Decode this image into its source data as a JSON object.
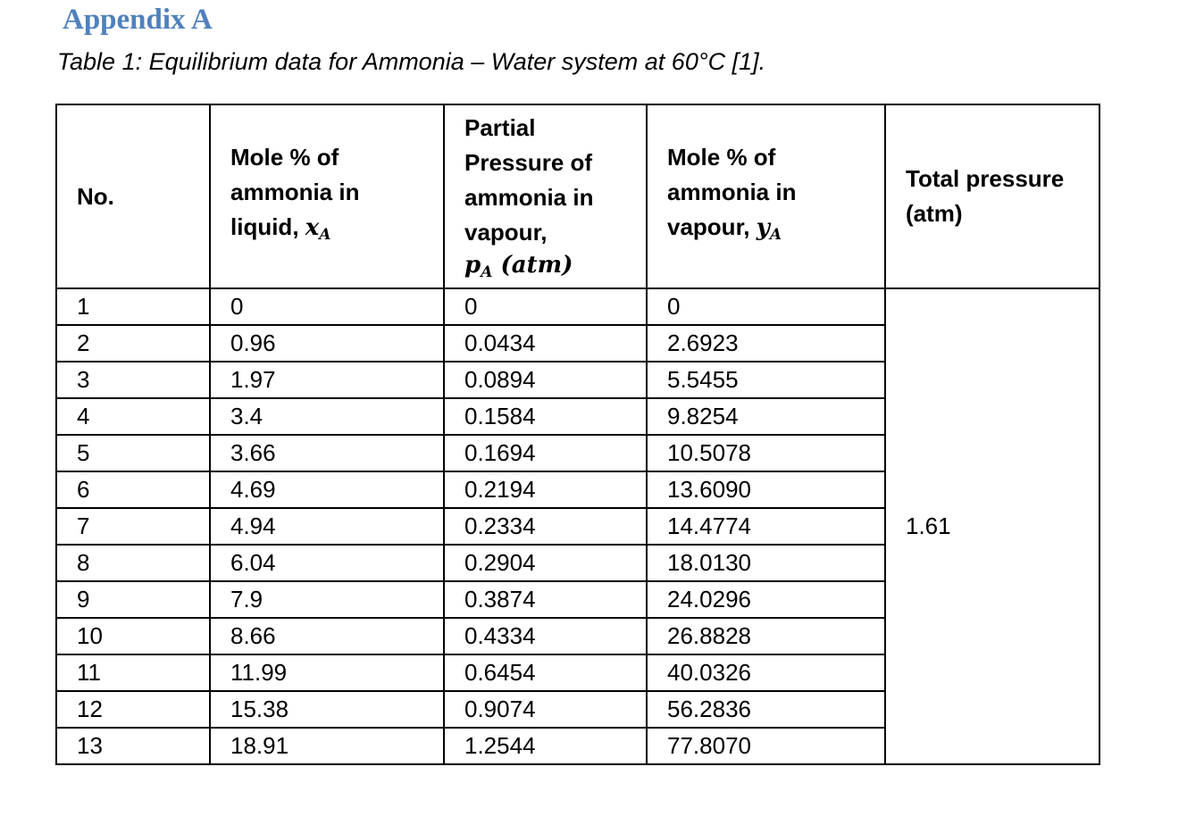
{
  "document": {
    "heading": "Appendix A",
    "caption": "Table 1: Equilibrium data for Ammonia – Water system at 60°C [1]."
  },
  "table": {
    "headers": {
      "no": "No.",
      "liquid_label": "Mole % of ammonia in liquid, ",
      "liquid_symbol": "x",
      "liquid_sub": "A",
      "partial_label": "Partial Pressure of ammonia in vapour,",
      "partial_symbol": "p",
      "partial_sub": "A",
      "partial_unit": " (atm)",
      "vapour_label": "Mole % of ammonia in vapour, ",
      "vapour_symbol": "y",
      "vapour_sub": "A",
      "total": "Total pressure (atm)"
    },
    "total_pressure": "1.61",
    "rows": [
      {
        "no": "1",
        "x": "0",
        "p": "0",
        "y": "0"
      },
      {
        "no": "2",
        "x": "0.96",
        "p": "0.0434",
        "y": "2.6923"
      },
      {
        "no": "3",
        "x": "1.97",
        "p": "0.0894",
        "y": "5.5455"
      },
      {
        "no": "4",
        "x": "3.4",
        "p": "0.1584",
        "y": "9.8254"
      },
      {
        "no": "5",
        "x": "3.66",
        "p": "0.1694",
        "y": "10.5078"
      },
      {
        "no": "6",
        "x": "4.69",
        "p": "0.2194",
        "y": "13.6090"
      },
      {
        "no": "7",
        "x": "4.94",
        "p": "0.2334",
        "y": "14.4774"
      },
      {
        "no": "8",
        "x": "6.04",
        "p": "0.2904",
        "y": "18.0130"
      },
      {
        "no": "9",
        "x": "7.9",
        "p": "0.3874",
        "y": "24.0296"
      },
      {
        "no": "10",
        "x": "8.66",
        "p": "0.4334",
        "y": "26.8828"
      },
      {
        "no": "11",
        "x": "11.99",
        "p": "0.6454",
        "y": "40.0326"
      },
      {
        "no": "12",
        "x": "15.38",
        "p": "0.9074",
        "y": "56.2836"
      },
      {
        "no": "13",
        "x": "18.91",
        "p": "1.2544",
        "y": "77.8070"
      }
    ]
  }
}
